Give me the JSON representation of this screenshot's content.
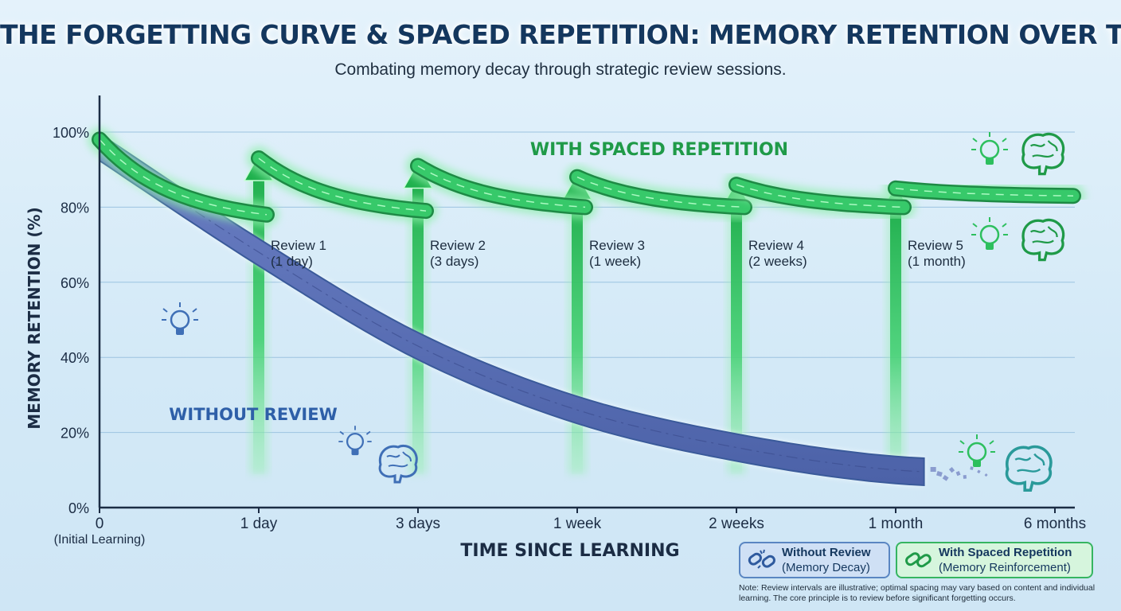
{
  "title": "THE FORGETTING CURVE & SPACED REPETITION: MEMORY RETENTION OVER TIME",
  "subtitle": "Combating memory decay through strategic review sessions.",
  "colors": {
    "decay": "#5c6fb3",
    "decay_edge": "#3a5a9a",
    "reinforcement": "#2dbf5e",
    "reinforcement_glow": "#8ff0ac",
    "axis": "#1b2c44",
    "title": "#14375e"
  },
  "chart_data": {
    "type": "line",
    "title": "THE FORGETTING CURVE & SPACED REPETITION: MEMORY RETENTION OVER TIME",
    "xlabel": "TIME SINCE LEARNING",
    "ylabel": "MEMORY RETENTION (%)",
    "ylim": [
      0,
      100
    ],
    "yticks": [
      "0%",
      "20%",
      "40%",
      "60%",
      "80%",
      "100%"
    ],
    "x_ticks": [
      "0",
      "1 day",
      "3 days",
      "1 week",
      "2 weeks",
      "1 month",
      "6 months"
    ],
    "x_tick_sublabel": "(Initial Learning)",
    "grid": true,
    "series": [
      {
        "name": "WITHOUT REVIEW",
        "points": [
          {
            "x": "0",
            "y": 96
          },
          {
            "x": "1 day",
            "y": 68
          },
          {
            "x": "3 days",
            "y": 43
          },
          {
            "x": "1 week",
            "y": 26
          },
          {
            "x": "2 weeks",
            "y": 16
          },
          {
            "x": "1 month",
            "y": 10
          },
          {
            "x": "6 months",
            "y": 9
          }
        ]
      },
      {
        "name": "WITH SPACED REPETITION",
        "segments": [
          {
            "start": {
              "x": "0",
              "y": 98
            },
            "end": {
              "x": "1 day",
              "y": 78
            }
          },
          {
            "start": {
              "x": "1 day",
              "y": 93
            },
            "end": {
              "x": "3 days",
              "y": 79
            }
          },
          {
            "start": {
              "x": "3 days",
              "y": 91
            },
            "end": {
              "x": "1 week",
              "y": 80
            }
          },
          {
            "start": {
              "x": "1 week",
              "y": 88
            },
            "end": {
              "x": "2 weeks",
              "y": 80
            }
          },
          {
            "start": {
              "x": "2 weeks",
              "y": 86
            },
            "end": {
              "x": "1 month",
              "y": 80
            }
          },
          {
            "start": {
              "x": "1 month",
              "y": 85
            },
            "end": {
              "x": "6 months",
              "y": 83
            }
          }
        ]
      }
    ],
    "reviews": [
      {
        "line1": "Review 1",
        "line2": "(1 day)",
        "x": "1 day"
      },
      {
        "line1": "Review 2",
        "line2": "(3 days)",
        "x": "3 days"
      },
      {
        "line1": "Review 3",
        "line2": "(1 week)",
        "x": "1 week"
      },
      {
        "line1": "Review 4",
        "line2": "(2 weeks)",
        "x": "2 weeks"
      },
      {
        "line1": "Review 5",
        "line2": "(1 month)",
        "x": "1 month"
      }
    ]
  },
  "legend": {
    "without": {
      "title": "Without Review",
      "subtitle": "(Memory Decay)",
      "icon": "broken-chain-icon"
    },
    "with": {
      "title": "With Spaced Repetition",
      "subtitle": "(Memory Reinforcement)",
      "icon": "chain-link-icon"
    }
  },
  "note": "Note: Review intervals are illustrative; optimal spacing may vary based on content and individual learning. The core principle is to review before significant forgetting occurs.",
  "icons": [
    "lightbulb-icon",
    "brain-icon"
  ]
}
